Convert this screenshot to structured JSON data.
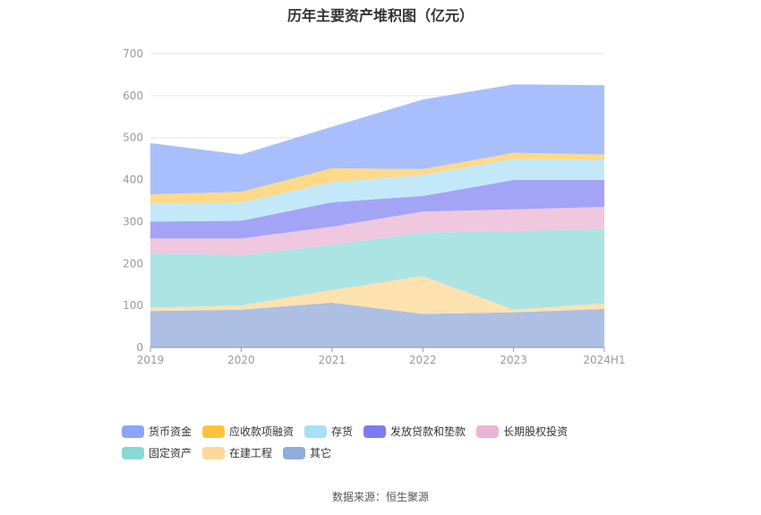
{
  "title": "历年主要资产堆积图（亿元）",
  "source": "数据来源：恒生聚源",
  "chart_data": {
    "type": "area",
    "stacked": true,
    "title": "历年主要资产堆积图（亿元）",
    "categories": [
      "2019",
      "2020",
      "2021",
      "2022",
      "2023",
      "2024H1"
    ],
    "ylim": [
      0,
      700
    ],
    "yticks": [
      0,
      100,
      200,
      300,
      400,
      500,
      600,
      700
    ],
    "grid": true,
    "legend_position": "bottom",
    "series": [
      {
        "name": "其它",
        "color": "#adbfe3",
        "values": [
          87,
          90,
          107,
          80,
          84,
          92
        ]
      },
      {
        "name": "在建工程",
        "color": "#fde2b0",
        "values": [
          8,
          10,
          30,
          90,
          6,
          13
        ]
      },
      {
        "name": "固定资产",
        "color": "#ace3e3",
        "values": [
          130,
          120,
          108,
          104,
          187,
          178
        ]
      },
      {
        "name": "长期股权投资",
        "color": "#efc7df",
        "values": [
          35,
          40,
          43,
          50,
          52,
          52
        ]
      },
      {
        "name": "发放贷款和垫款",
        "color": "#a3a4f6",
        "values": [
          40,
          42,
          58,
          37,
          70,
          64
        ]
      },
      {
        "name": "存货",
        "color": "#c3e8fa",
        "values": [
          43,
          43,
          48,
          50,
          50,
          48
        ]
      },
      {
        "name": "应收款项融资",
        "color": "#fed98a",
        "values": [
          22,
          26,
          33,
          14,
          15,
          13
        ]
      },
      {
        "name": "货币资金",
        "color": "#a9bffd",
        "values": [
          122,
          89,
          99,
          166,
          163,
          165
        ]
      }
    ]
  },
  "legend": [
    {
      "name": "货币资金",
      "color": "#8aa6fb"
    },
    {
      "name": "应收款项融资",
      "color": "#fdc33c"
    },
    {
      "name": "存货",
      "color": "#a8dff9"
    },
    {
      "name": "发放贷款和垫款",
      "color": "#7b7cf1"
    },
    {
      "name": "长期股权投资",
      "color": "#e8b5d6"
    },
    {
      "name": "固定资产",
      "color": "#89d7d7"
    },
    {
      "name": "在建工程",
      "color": "#fdd79a"
    },
    {
      "name": "其它",
      "color": "#8faddf"
    }
  ]
}
